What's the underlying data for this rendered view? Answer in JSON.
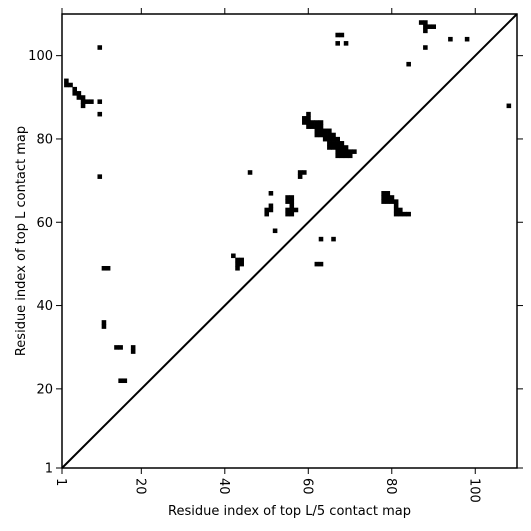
{
  "chart_data": {
    "type": "heatmap",
    "title": "",
    "xlabel": "Residue index of top L/5 contact map",
    "ylabel": "Residue index of top L contact map",
    "xlim": [
      1,
      110
    ],
    "ylim": [
      1,
      110
    ],
    "x_ticks": [
      1,
      20,
      40,
      60,
      80,
      100
    ],
    "y_ticks": [
      1,
      20,
      40,
      60,
      80,
      100
    ],
    "x_tick_labels": [
      "1",
      "20",
      "40",
      "60",
      "80",
      "100"
    ],
    "y_tick_labels": [
      "1",
      "20",
      "40",
      "60",
      "80",
      "100"
    ],
    "x_tick_rotation": -90,
    "grid": false,
    "diagonal_line": true,
    "cell_color": "#000000",
    "line_color": "#000000",
    "background": "#ffffff",
    "cells": [
      [
        2,
        94
      ],
      [
        2,
        93
      ],
      [
        3,
        93
      ],
      [
        4,
        92
      ],
      [
        4,
        91
      ],
      [
        5,
        91
      ],
      [
        5,
        90
      ],
      [
        6,
        90
      ],
      [
        6,
        89
      ],
      [
        6,
        88
      ],
      [
        7,
        89
      ],
      [
        8,
        89
      ],
      [
        10,
        102
      ],
      [
        10,
        89
      ],
      [
        10,
        86
      ],
      [
        10,
        71
      ],
      [
        11,
        49
      ],
      [
        12,
        49
      ],
      [
        11,
        36
      ],
      [
        11,
        35
      ],
      [
        14,
        30
      ],
      [
        15,
        30
      ],
      [
        15,
        22
      ],
      [
        16,
        22
      ],
      [
        18,
        30
      ],
      [
        18,
        29
      ],
      [
        42,
        52
      ],
      [
        43,
        51
      ],
      [
        43,
        50
      ],
      [
        43,
        49
      ],
      [
        44,
        51
      ],
      [
        44,
        50
      ],
      [
        46,
        72
      ],
      [
        50,
        63
      ],
      [
        50,
        62
      ],
      [
        51,
        64
      ],
      [
        51,
        63
      ],
      [
        51,
        67
      ],
      [
        52,
        58
      ],
      [
        55,
        66
      ],
      [
        55,
        65
      ],
      [
        55,
        63
      ],
      [
        55,
        62
      ],
      [
        56,
        66
      ],
      [
        56,
        65
      ],
      [
        56,
        64
      ],
      [
        56,
        63
      ],
      [
        56,
        62
      ],
      [
        57,
        63
      ],
      [
        58,
        72
      ],
      [
        58,
        71
      ],
      [
        59,
        72
      ],
      [
        59,
        85
      ],
      [
        59,
        84
      ],
      [
        60,
        86
      ],
      [
        60,
        85
      ],
      [
        60,
        84
      ],
      [
        60,
        83
      ],
      [
        61,
        84
      ],
      [
        61,
        83
      ],
      [
        62,
        84
      ],
      [
        62,
        83
      ],
      [
        62,
        82
      ],
      [
        62,
        81
      ],
      [
        63,
        84
      ],
      [
        63,
        83
      ],
      [
        63,
        82
      ],
      [
        63,
        81
      ],
      [
        64,
        82
      ],
      [
        64,
        81
      ],
      [
        64,
        80
      ],
      [
        65,
        82
      ],
      [
        65,
        81
      ],
      [
        65,
        80
      ],
      [
        65,
        79
      ],
      [
        65,
        78
      ],
      [
        66,
        81
      ],
      [
        66,
        80
      ],
      [
        66,
        79
      ],
      [
        66,
        78
      ],
      [
        67,
        80
      ],
      [
        67,
        79
      ],
      [
        67,
        78
      ],
      [
        67,
        77
      ],
      [
        67,
        76
      ],
      [
        68,
        79
      ],
      [
        68,
        78
      ],
      [
        68,
        77
      ],
      [
        68,
        76
      ],
      [
        69,
        78
      ],
      [
        69,
        77
      ],
      [
        69,
        76
      ],
      [
        70,
        77
      ],
      [
        70,
        76
      ],
      [
        71,
        77
      ],
      [
        63,
        56
      ],
      [
        66,
        56
      ],
      [
        62,
        50
      ],
      [
        63,
        50
      ],
      [
        67,
        105
      ],
      [
        68,
        105
      ],
      [
        67,
        103
      ],
      [
        69,
        103
      ],
      [
        78,
        67
      ],
      [
        78,
        66
      ],
      [
        78,
        65
      ],
      [
        79,
        67
      ],
      [
        79,
        66
      ],
      [
        79,
        65
      ],
      [
        80,
        66
      ],
      [
        80,
        65
      ],
      [
        81,
        65
      ],
      [
        81,
        64
      ],
      [
        81,
        63
      ],
      [
        81,
        62
      ],
      [
        82,
        63
      ],
      [
        82,
        62
      ],
      [
        83,
        62
      ],
      [
        84,
        62
      ],
      [
        84,
        98
      ],
      [
        87,
        108
      ],
      [
        88,
        108
      ],
      [
        88,
        107
      ],
      [
        88,
        106
      ],
      [
        89,
        107
      ],
      [
        90,
        107
      ],
      [
        88,
        102
      ],
      [
        94,
        104
      ],
      [
        98,
        104
      ],
      [
        108,
        88
      ]
    ]
  }
}
